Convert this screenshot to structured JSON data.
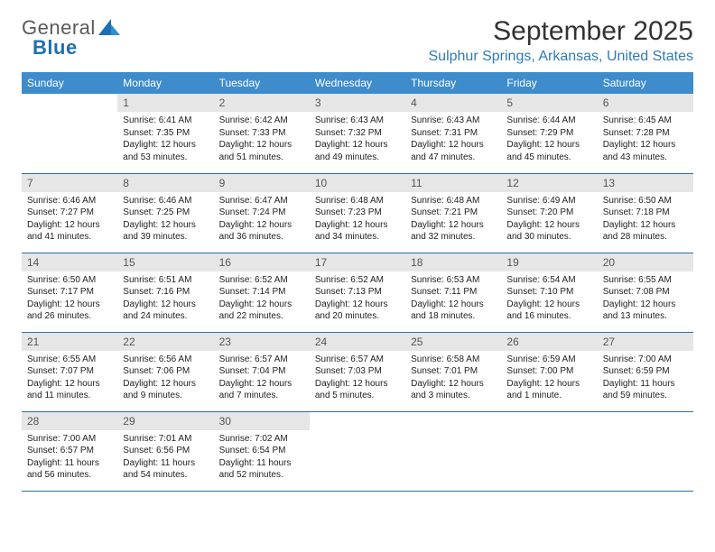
{
  "logo": {
    "textGray": "General",
    "textBlue": "Blue"
  },
  "title": "September 2025",
  "location": "Sulphur Springs, Arkansas, United States",
  "colors": {
    "headerBg": "#3e8ccc",
    "headerText": "#ffffff",
    "dayNumBg": "#e6e6e6",
    "rowBorder": "#2f6fa3",
    "locationColor": "#2f7ab8"
  },
  "weekdays": [
    "Sunday",
    "Monday",
    "Tuesday",
    "Wednesday",
    "Thursday",
    "Friday",
    "Saturday"
  ],
  "weeks": [
    [
      null,
      {
        "n": "1",
        "sr": "6:41 AM",
        "ss": "7:35 PM",
        "dl": "12 hours and 53 minutes."
      },
      {
        "n": "2",
        "sr": "6:42 AM",
        "ss": "7:33 PM",
        "dl": "12 hours and 51 minutes."
      },
      {
        "n": "3",
        "sr": "6:43 AM",
        "ss": "7:32 PM",
        "dl": "12 hours and 49 minutes."
      },
      {
        "n": "4",
        "sr": "6:43 AM",
        "ss": "7:31 PM",
        "dl": "12 hours and 47 minutes."
      },
      {
        "n": "5",
        "sr": "6:44 AM",
        "ss": "7:29 PM",
        "dl": "12 hours and 45 minutes."
      },
      {
        "n": "6",
        "sr": "6:45 AM",
        "ss": "7:28 PM",
        "dl": "12 hours and 43 minutes."
      }
    ],
    [
      {
        "n": "7",
        "sr": "6:46 AM",
        "ss": "7:27 PM",
        "dl": "12 hours and 41 minutes."
      },
      {
        "n": "8",
        "sr": "6:46 AM",
        "ss": "7:25 PM",
        "dl": "12 hours and 39 minutes."
      },
      {
        "n": "9",
        "sr": "6:47 AM",
        "ss": "7:24 PM",
        "dl": "12 hours and 36 minutes."
      },
      {
        "n": "10",
        "sr": "6:48 AM",
        "ss": "7:23 PM",
        "dl": "12 hours and 34 minutes."
      },
      {
        "n": "11",
        "sr": "6:48 AM",
        "ss": "7:21 PM",
        "dl": "12 hours and 32 minutes."
      },
      {
        "n": "12",
        "sr": "6:49 AM",
        "ss": "7:20 PM",
        "dl": "12 hours and 30 minutes."
      },
      {
        "n": "13",
        "sr": "6:50 AM",
        "ss": "7:18 PM",
        "dl": "12 hours and 28 minutes."
      }
    ],
    [
      {
        "n": "14",
        "sr": "6:50 AM",
        "ss": "7:17 PM",
        "dl": "12 hours and 26 minutes."
      },
      {
        "n": "15",
        "sr": "6:51 AM",
        "ss": "7:16 PM",
        "dl": "12 hours and 24 minutes."
      },
      {
        "n": "16",
        "sr": "6:52 AM",
        "ss": "7:14 PM",
        "dl": "12 hours and 22 minutes."
      },
      {
        "n": "17",
        "sr": "6:52 AM",
        "ss": "7:13 PM",
        "dl": "12 hours and 20 minutes."
      },
      {
        "n": "18",
        "sr": "6:53 AM",
        "ss": "7:11 PM",
        "dl": "12 hours and 18 minutes."
      },
      {
        "n": "19",
        "sr": "6:54 AM",
        "ss": "7:10 PM",
        "dl": "12 hours and 16 minutes."
      },
      {
        "n": "20",
        "sr": "6:55 AM",
        "ss": "7:08 PM",
        "dl": "12 hours and 13 minutes."
      }
    ],
    [
      {
        "n": "21",
        "sr": "6:55 AM",
        "ss": "7:07 PM",
        "dl": "12 hours and 11 minutes."
      },
      {
        "n": "22",
        "sr": "6:56 AM",
        "ss": "7:06 PM",
        "dl": "12 hours and 9 minutes."
      },
      {
        "n": "23",
        "sr": "6:57 AM",
        "ss": "7:04 PM",
        "dl": "12 hours and 7 minutes."
      },
      {
        "n": "24",
        "sr": "6:57 AM",
        "ss": "7:03 PM",
        "dl": "12 hours and 5 minutes."
      },
      {
        "n": "25",
        "sr": "6:58 AM",
        "ss": "7:01 PM",
        "dl": "12 hours and 3 minutes."
      },
      {
        "n": "26",
        "sr": "6:59 AM",
        "ss": "7:00 PM",
        "dl": "12 hours and 1 minute."
      },
      {
        "n": "27",
        "sr": "7:00 AM",
        "ss": "6:59 PM",
        "dl": "11 hours and 59 minutes."
      }
    ],
    [
      {
        "n": "28",
        "sr": "7:00 AM",
        "ss": "6:57 PM",
        "dl": "11 hours and 56 minutes."
      },
      {
        "n": "29",
        "sr": "7:01 AM",
        "ss": "6:56 PM",
        "dl": "11 hours and 54 minutes."
      },
      {
        "n": "30",
        "sr": "7:02 AM",
        "ss": "6:54 PM",
        "dl": "11 hours and 52 minutes."
      },
      null,
      null,
      null,
      null
    ]
  ],
  "labels": {
    "sunrise": "Sunrise:",
    "sunset": "Sunset:",
    "daylight": "Daylight:"
  }
}
